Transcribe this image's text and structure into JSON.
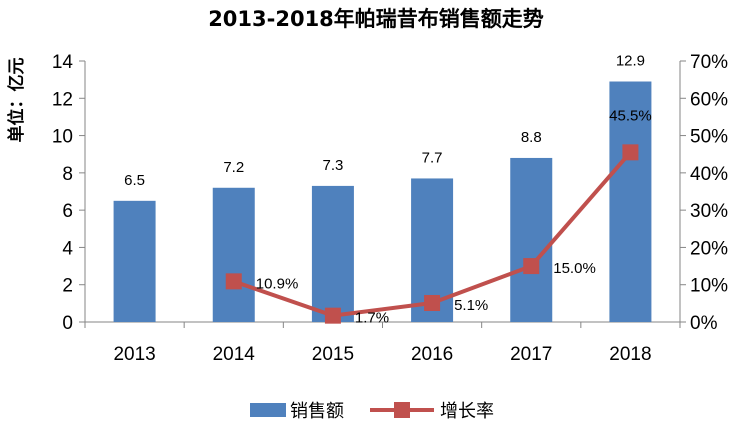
{
  "chart_data": {
    "type": "bar+line",
    "title": "2013-2018年帕瑞昔布销售额走势",
    "ylabel": "单位：亿元",
    "categories": [
      "2013",
      "2014",
      "2015",
      "2016",
      "2017",
      "2018"
    ],
    "series": [
      {
        "name": "销售额",
        "type": "bar",
        "axis": "left",
        "values": [
          6.5,
          7.2,
          7.3,
          7.7,
          8.8,
          12.9
        ],
        "labels": [
          "6.5",
          "7.2",
          "7.3",
          "7.7",
          "8.8",
          "12.9"
        ],
        "color": "#4f81bd"
      },
      {
        "name": "增长率",
        "type": "line",
        "axis": "right",
        "values": [
          null,
          10.9,
          1.7,
          5.1,
          15.0,
          45.5
        ],
        "labels": [
          "",
          "10.9%",
          "1.7%",
          "5.1%",
          "15.0%",
          "45.5%"
        ],
        "color": "#c0504d"
      }
    ],
    "y_left": {
      "min": 0,
      "max": 14,
      "step": 2,
      "ticks": [
        "0",
        "2",
        "4",
        "6",
        "8",
        "10",
        "12",
        "14"
      ]
    },
    "y_right": {
      "min": 0,
      "max": 70,
      "step": 10,
      "ticks": [
        "0%",
        "10%",
        "20%",
        "30%",
        "40%",
        "50%",
        "60%",
        "70%"
      ]
    },
    "grid": false,
    "legend_position": "bottom"
  }
}
